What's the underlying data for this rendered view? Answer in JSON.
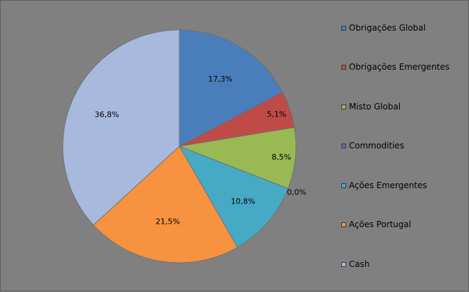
{
  "chart_data": {
    "type": "pie",
    "categories": [
      "Obrigações Global",
      "Obrigações Emergentes",
      "Misto Global",
      "Commodities",
      "Ações Emergentes",
      "Ações Portugal",
      "Cash"
    ],
    "values": [
      17.3,
      5.1,
      8.5,
      0.0,
      10.8,
      21.5,
      36.8
    ],
    "labels": [
      "17,3%",
      "5,1%",
      "8,5%",
      "0,0%",
      "10,8%",
      "21,5%",
      "36,8%"
    ],
    "colors": [
      "#4a7ebb",
      "#be4b48",
      "#98b954",
      "#7d60a0",
      "#46aac5",
      "#f69240",
      "#a7b9dd"
    ],
    "legend_position": "right",
    "start_angle": "12 o'clock",
    "direction": "clockwise"
  }
}
